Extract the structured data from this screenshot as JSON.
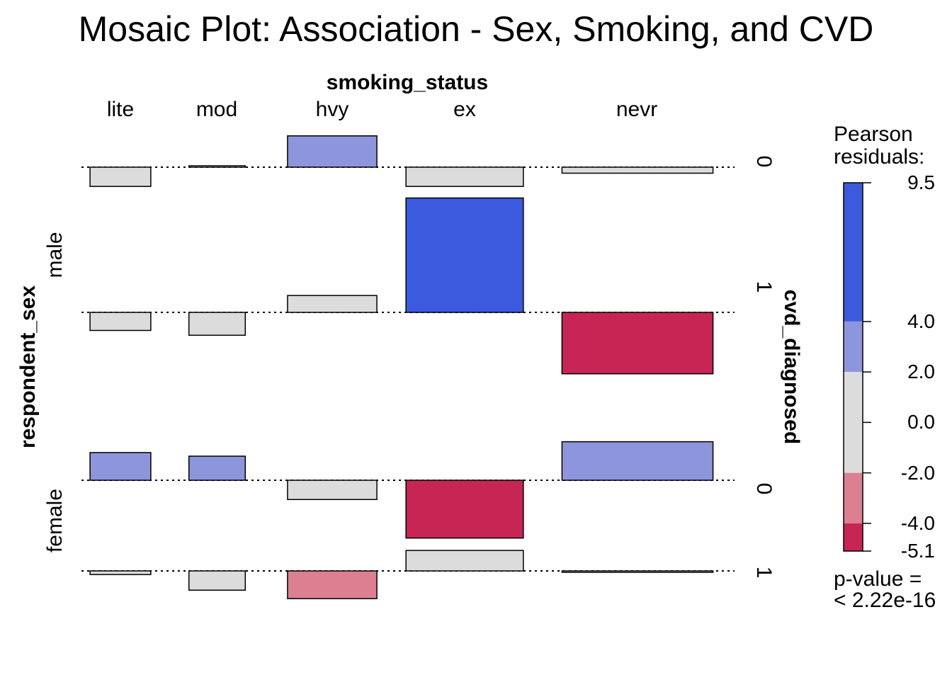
{
  "chart_data": {
    "type": "mosaic",
    "title": "Mosaic Plot: Association - Sex, Smoking, and CVD",
    "x_variable": "smoking_status",
    "y_variable": "respondent_sex",
    "right_variable": "cvd_diagnosed",
    "smoking_levels": [
      "lite",
      "mod",
      "hvy",
      "ex",
      "nevr"
    ],
    "sex_levels": [
      "male",
      "female"
    ],
    "cvd_levels": [
      "0",
      "1"
    ],
    "cells": [
      {
        "sex": "male",
        "cvd": "0",
        "smoking": "lite",
        "residual": -1.6
      },
      {
        "sex": "male",
        "cvd": "0",
        "smoking": "mod",
        "residual": 0.0
      },
      {
        "sex": "male",
        "cvd": "0",
        "smoking": "hvy",
        "residual": 2.6
      },
      {
        "sex": "male",
        "cvd": "0",
        "smoking": "ex",
        "residual": -1.6
      },
      {
        "sex": "male",
        "cvd": "0",
        "smoking": "nevr",
        "residual": -0.5
      },
      {
        "sex": "male",
        "cvd": "1",
        "smoking": "lite",
        "residual": -1.5
      },
      {
        "sex": "male",
        "cvd": "1",
        "smoking": "mod",
        "residual": -1.9
      },
      {
        "sex": "male",
        "cvd": "1",
        "smoking": "hvy",
        "residual": 1.4
      },
      {
        "sex": "male",
        "cvd": "1",
        "smoking": "ex",
        "residual": 9.5
      },
      {
        "sex": "male",
        "cvd": "1",
        "smoking": "nevr",
        "residual": -5.1
      },
      {
        "sex": "female",
        "cvd": "0",
        "smoking": "lite",
        "residual": 2.3
      },
      {
        "sex": "female",
        "cvd": "0",
        "smoking": "mod",
        "residual": 2.0
      },
      {
        "sex": "female",
        "cvd": "0",
        "smoking": "hvy",
        "residual": -1.6
      },
      {
        "sex": "female",
        "cvd": "0",
        "smoking": "ex",
        "residual": -4.8
      },
      {
        "sex": "female",
        "cvd": "0",
        "smoking": "nevr",
        "residual": 3.2
      },
      {
        "sex": "female",
        "cvd": "1",
        "smoking": "lite",
        "residual": -0.3
      },
      {
        "sex": "female",
        "cvd": "1",
        "smoking": "mod",
        "residual": -1.6
      },
      {
        "sex": "female",
        "cvd": "1",
        "smoking": "hvy",
        "residual": -2.3
      },
      {
        "sex": "female",
        "cvd": "1",
        "smoking": "ex",
        "residual": 1.7
      },
      {
        "sex": "female",
        "cvd": "1",
        "smoking": "nevr",
        "residual": -0.1
      }
    ],
    "legend": {
      "title": "Pearson\nresiduals:",
      "range": [
        -5.1,
        9.5
      ],
      "tick_labels": [
        "9.5",
        "4.0",
        "2.0",
        "0.0",
        "-2.0",
        "-4.0",
        "-5.1"
      ],
      "tick_values": [
        9.5,
        4.0,
        2.0,
        0.0,
        -2.0,
        -4.0,
        -5.1
      ],
      "bands": [
        {
          "from": 4.0,
          "to": 9.5,
          "color": "#3c5ade"
        },
        {
          "from": 2.0,
          "to": 4.0,
          "color": "#8d95dc"
        },
        {
          "from": -2.0,
          "to": 2.0,
          "color": "#dcdcdc"
        },
        {
          "from": -4.0,
          "to": -2.0,
          "color": "#dc7f91"
        },
        {
          "from": -5.1,
          "to": -4.0,
          "color": "#c72654"
        }
      ]
    },
    "p_value": "p-value =\n< 2.22e-16"
  }
}
